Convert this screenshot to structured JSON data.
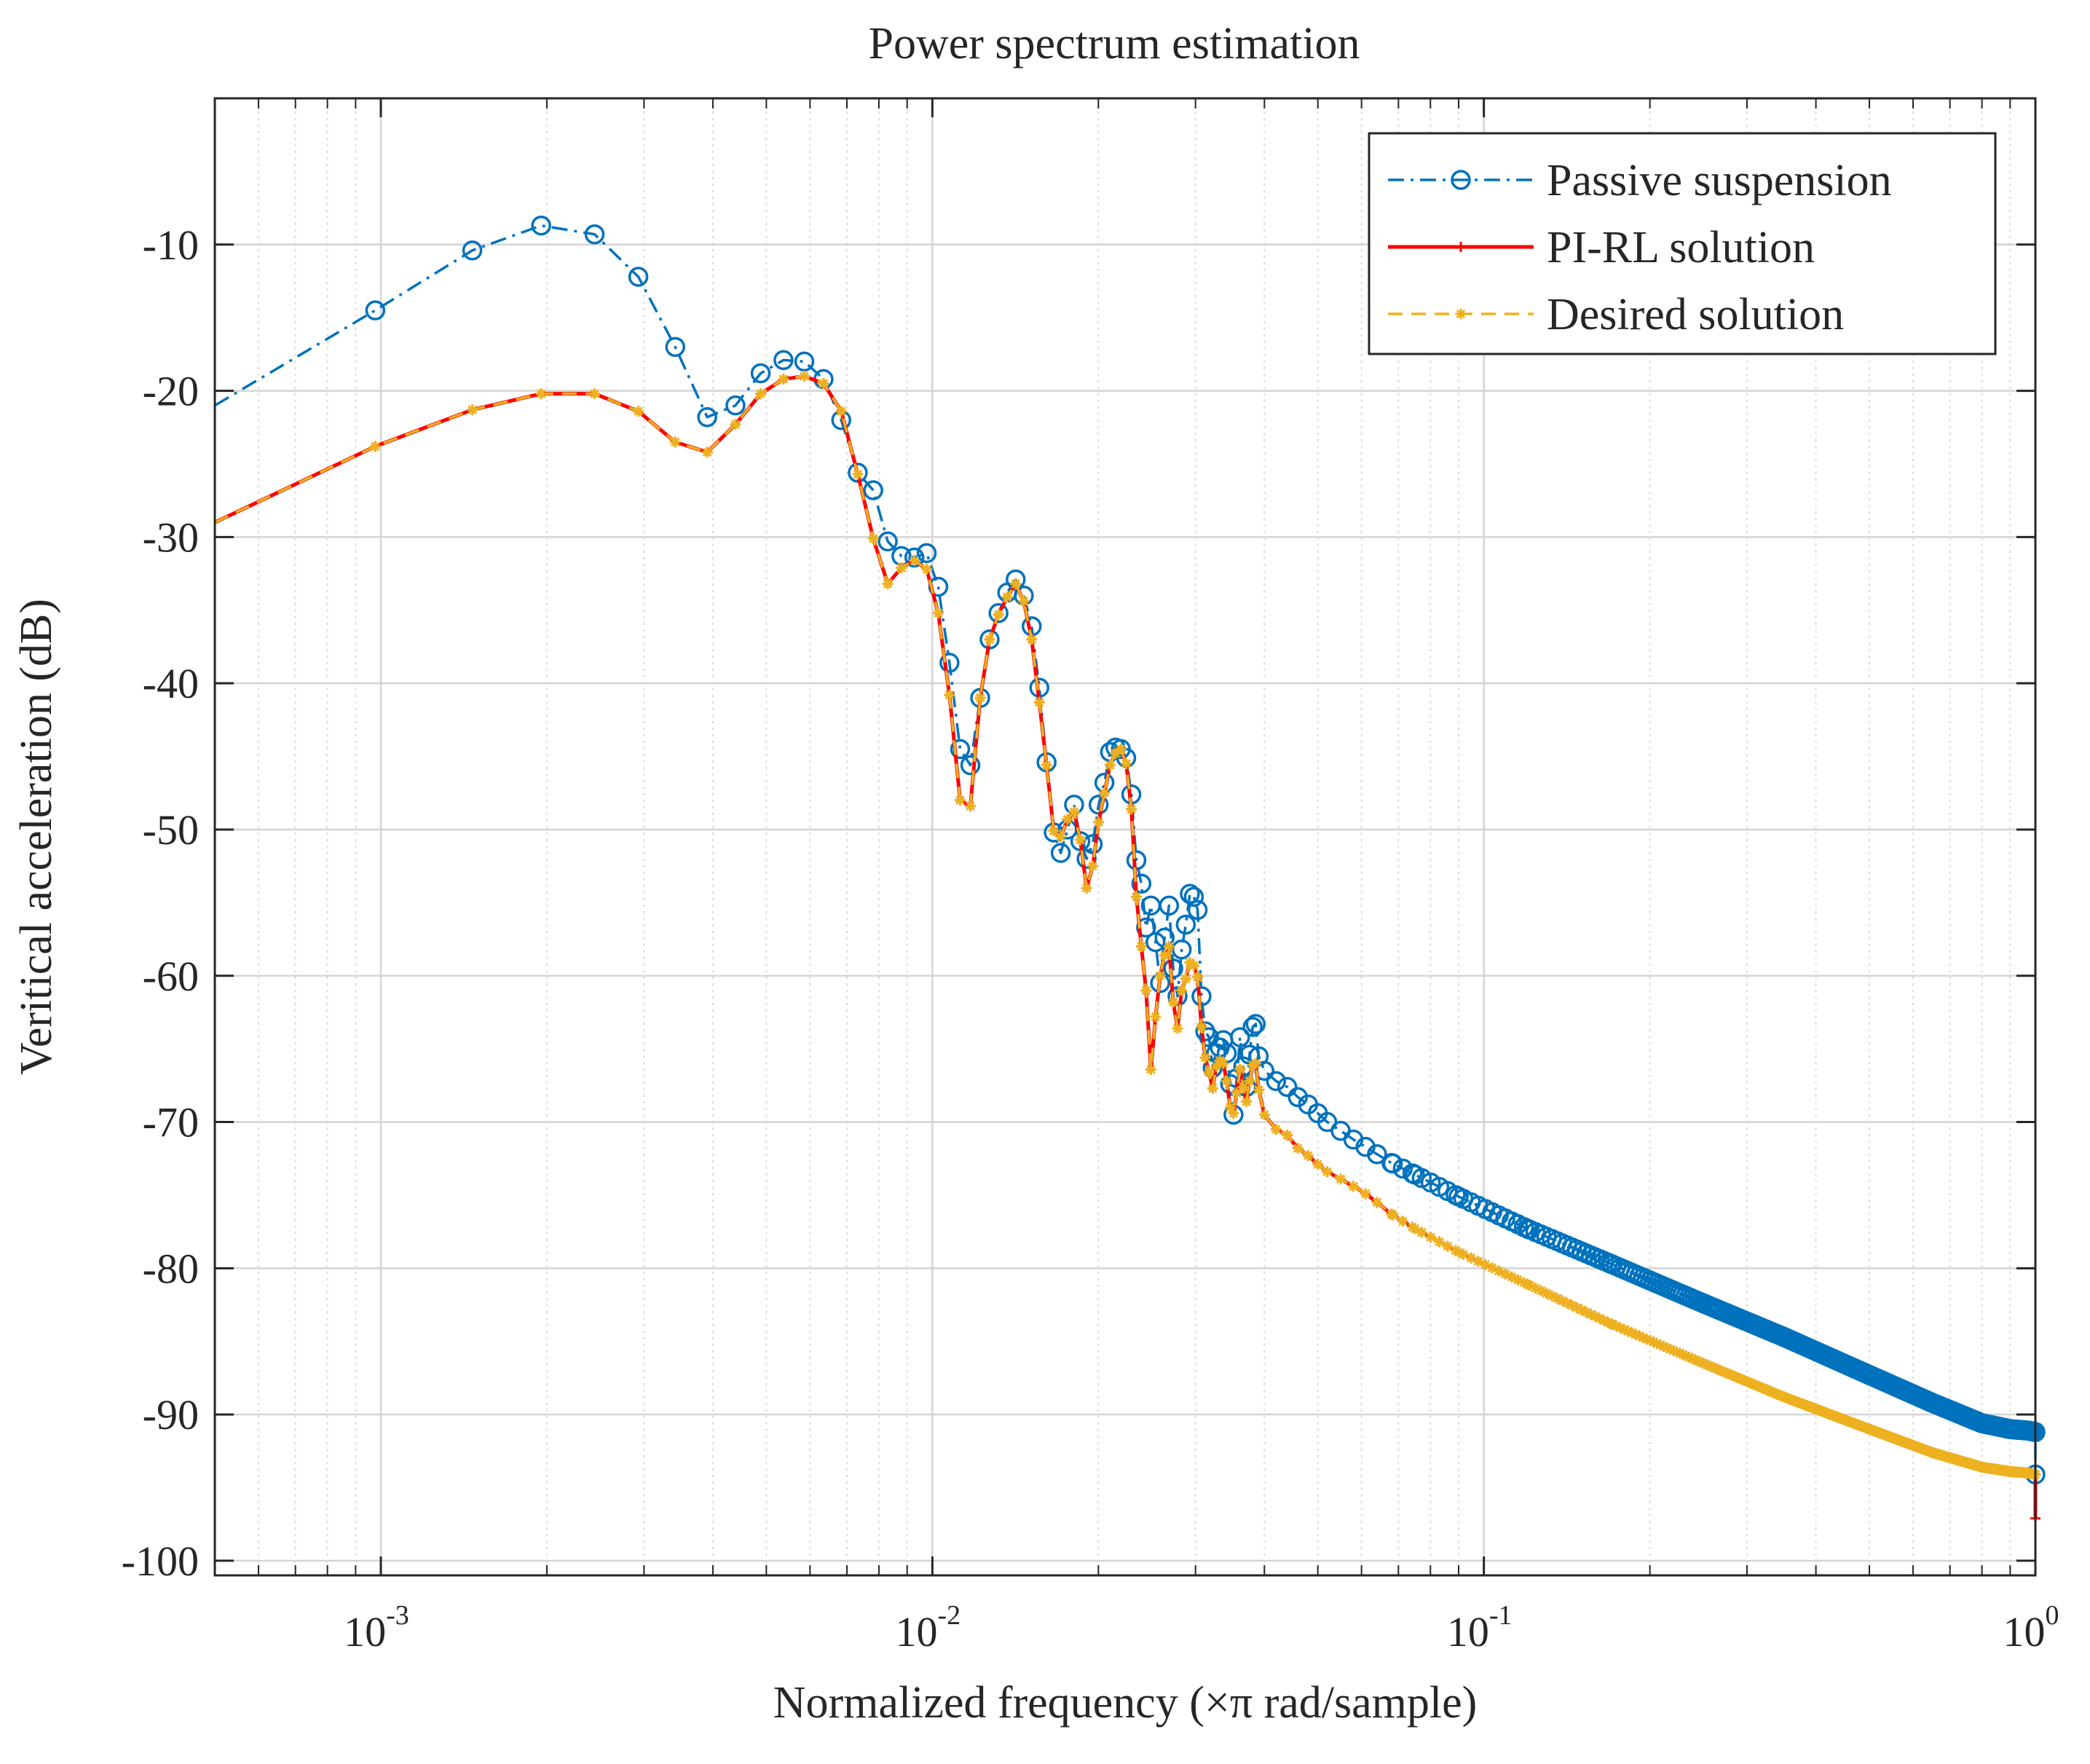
{
  "chart_data": {
    "type": "line",
    "title": "Power spectrum estimation",
    "xlabel": "Normalized frequency  (×π rad/sample)",
    "ylabel": "Veritical acceleration (dB)",
    "xscale": "log",
    "xlim": [
      0.0005,
      1
    ],
    "ylim": [
      -101,
      0
    ],
    "grid": true,
    "legend_position": "top-right",
    "x_ticks": [
      {
        "value": 0.001,
        "base": "10",
        "exp": "-3"
      },
      {
        "value": 0.01,
        "base": "10",
        "exp": "-2"
      },
      {
        "value": 0.1,
        "base": "10",
        "exp": "-1"
      },
      {
        "value": 1,
        "base": "10",
        "exp": "0"
      }
    ],
    "y_ticks": [
      {
        "value": -10,
        "label": "-10"
      },
      {
        "value": -20,
        "label": "-20"
      },
      {
        "value": -30,
        "label": "-30"
      },
      {
        "value": -40,
        "label": "-40"
      },
      {
        "value": -50,
        "label": "-50"
      },
      {
        "value": -60,
        "label": "-60"
      },
      {
        "value": -70,
        "label": "-70"
      },
      {
        "value": -80,
        "label": "-80"
      },
      {
        "value": -90,
        "label": "-90"
      },
      {
        "value": -100,
        "label": "-100"
      }
    ],
    "series": [
      {
        "name": "Passive suspension",
        "color": "#0072BD",
        "line_style": "dashdot",
        "marker": "circle",
        "x": [
          0.0005,
          0.000977,
          0.001465,
          0.001953,
          0.002441,
          0.00293,
          0.003418,
          0.003906,
          0.004395,
          0.004883,
          0.005371,
          0.005859,
          0.006348,
          0.006836,
          0.007324,
          0.007813,
          0.008301,
          0.008789,
          0.009277,
          0.009766,
          0.01025,
          0.01074,
          0.01123,
          0.01172,
          0.01221,
          0.0127,
          0.01318,
          0.01367,
          0.01416,
          0.01465,
          0.01514,
          0.01563,
          0.01611,
          0.0166,
          0.01709,
          0.01758,
          0.01807,
          0.01855,
          0.01904,
          0.01953,
          0.02002,
          0.02051,
          0.021,
          0.02148,
          0.02197,
          0.02246,
          0.02295,
          0.02344,
          0.02393,
          0.02441,
          0.0249,
          0.02539,
          0.02588,
          0.02637,
          0.02686,
          0.02734,
          0.02783,
          0.02832,
          0.02881,
          0.0293,
          0.02979,
          0.03027,
          0.03076,
          0.03125,
          0.03174,
          0.03223,
          0.03271,
          0.0332,
          0.03369,
          0.03418,
          0.03467,
          0.03516,
          0.03564,
          0.03613,
          0.03662,
          0.03711,
          0.0376,
          0.03809,
          0.03857,
          0.03906,
          0.04,
          0.042,
          0.044,
          0.046,
          0.048,
          0.05,
          0.052,
          0.055,
          0.058,
          0.061,
          0.064,
          0.068,
          0.075,
          0.09,
          0.12,
          0.17,
          0.25,
          0.35,
          0.5,
          0.65,
          0.8,
          0.9,
          0.97,
          1.0,
          1.0
        ],
        "y": [
          -21.0,
          -14.5,
          -10.4,
          -8.7,
          -9.3,
          -12.2,
          -17.0,
          -21.8,
          -21.0,
          -18.8,
          -17.9,
          -18.0,
          -19.2,
          -22.0,
          -25.6,
          -26.8,
          -30.3,
          -31.3,
          -31.4,
          -31.1,
          -33.4,
          -38.6,
          -44.5,
          -45.6,
          -41.0,
          -37.0,
          -35.2,
          -33.8,
          -32.9,
          -34.0,
          -36.1,
          -40.3,
          -45.4,
          -50.2,
          -51.6,
          -50.0,
          -48.3,
          -50.8,
          -52.0,
          -51.0,
          -48.3,
          -46.8,
          -44.7,
          -44.4,
          -44.5,
          -45.1,
          -47.6,
          -52.1,
          -53.7,
          -56.7,
          -55.2,
          -57.7,
          -60.5,
          -57.4,
          -55.2,
          -59.5,
          -61.4,
          -58.2,
          -56.5,
          -54.4,
          -54.6,
          -55.5,
          -61.4,
          -63.8,
          -64.2,
          -66.3,
          -65.3,
          -64.9,
          -64.4,
          -65.3,
          -67.4,
          -69.5,
          -67.0,
          -64.2,
          -66.2,
          -67.6,
          -65.4,
          -63.5,
          -63.3,
          -65.5,
          -66.5,
          -67.2,
          -67.6,
          -68.3,
          -68.8,
          -69.4,
          -70.0,
          -70.6,
          -71.2,
          -71.7,
          -72.2,
          -72.8,
          -73.6,
          -75.1,
          -77.3,
          -79.7,
          -82.4,
          -84.7,
          -87.3,
          -89.2,
          -90.6,
          -91.0,
          -91.1,
          -91.2,
          -94.1
        ]
      },
      {
        "name": "PI-RL solution",
        "color": "#FF0000",
        "line_style": "solid",
        "marker": "plus",
        "x": [
          0.0005,
          0.000977,
          0.001465,
          0.001953,
          0.002441,
          0.00293,
          0.003418,
          0.003906,
          0.004395,
          0.004883,
          0.005371,
          0.005859,
          0.006348,
          0.006836,
          0.007324,
          0.007813,
          0.008301,
          0.008789,
          0.009277,
          0.009766,
          0.01025,
          0.01074,
          0.01123,
          0.01172,
          0.01221,
          0.0127,
          0.01318,
          0.01367,
          0.01416,
          0.01465,
          0.01514,
          0.01563,
          0.01611,
          0.0166,
          0.01709,
          0.01758,
          0.01807,
          0.01855,
          0.01904,
          0.01953,
          0.02002,
          0.02051,
          0.021,
          0.02148,
          0.02197,
          0.02246,
          0.02295,
          0.02344,
          0.02393,
          0.02441,
          0.0249,
          0.02539,
          0.02588,
          0.02637,
          0.02686,
          0.02734,
          0.02783,
          0.02832,
          0.02881,
          0.0293,
          0.02979,
          0.03027,
          0.03076,
          0.03125,
          0.03174,
          0.03223,
          0.03271,
          0.0332,
          0.03369,
          0.03418,
          0.03467,
          0.03516,
          0.03564,
          0.03613,
          0.03662,
          0.03711,
          0.0376,
          0.03809,
          0.03857,
          0.03906,
          0.04,
          0.042,
          0.044,
          0.046,
          0.048,
          0.05,
          0.052,
          0.055,
          0.058,
          0.061,
          0.064,
          0.068,
          0.075,
          0.09,
          0.12,
          0.17,
          0.25,
          0.35,
          0.5,
          0.65,
          0.8,
          0.9,
          0.97,
          1.0,
          1.0
        ],
        "y": [
          -29.0,
          -23.8,
          -21.3,
          -20.2,
          -20.2,
          -21.4,
          -23.5,
          -24.2,
          -22.3,
          -20.2,
          -19.2,
          -19.0,
          -19.5,
          -21.4,
          -25.7,
          -30.1,
          -33.2,
          -32.1,
          -31.6,
          -32.2,
          -35.2,
          -40.8,
          -48.0,
          -48.4,
          -41.0,
          -37.0,
          -35.3,
          -34.1,
          -33.2,
          -34.4,
          -37.0,
          -41.3,
          -45.6,
          -50.1,
          -50.5,
          -49.3,
          -48.8,
          -50.7,
          -54.0,
          -52.5,
          -49.5,
          -47.5,
          -45.6,
          -44.8,
          -44.5,
          -45.5,
          -48.6,
          -54.6,
          -58.0,
          -61.0,
          -66.4,
          -62.8,
          -60.0,
          -58.6,
          -58.0,
          -61.8,
          -63.6,
          -61.0,
          -60.2,
          -59.1,
          -59.3,
          -60.1,
          -63.5,
          -65.6,
          -66.6,
          -67.7,
          -66.2,
          -65.8,
          -66.0,
          -67.2,
          -69.0,
          -69.4,
          -68.0,
          -66.4,
          -67.6,
          -68.6,
          -67.2,
          -66.1,
          -66.0,
          -67.8,
          -69.5,
          -70.5,
          -70.9,
          -71.8,
          -72.3,
          -72.9,
          -73.4,
          -73.9,
          -74.4,
          -74.9,
          -75.5,
          -76.3,
          -77.3,
          -78.9,
          -81.1,
          -83.8,
          -86.5,
          -88.8,
          -91.0,
          -92.6,
          -93.6,
          -93.9,
          -94.0,
          -94.1,
          -97.1
        ]
      },
      {
        "name": "Desired solution",
        "color": "#EDB120",
        "line_style": "dashed",
        "marker": "asterisk",
        "x": [
          0.0005,
          0.000977,
          0.001465,
          0.001953,
          0.002441,
          0.00293,
          0.003418,
          0.003906,
          0.004395,
          0.004883,
          0.005371,
          0.005859,
          0.006348,
          0.006836,
          0.007324,
          0.007813,
          0.008301,
          0.008789,
          0.009277,
          0.009766,
          0.01025,
          0.01074,
          0.01123,
          0.01172,
          0.01221,
          0.0127,
          0.01318,
          0.01367,
          0.01416,
          0.01465,
          0.01514,
          0.01563,
          0.01611,
          0.0166,
          0.01709,
          0.01758,
          0.01807,
          0.01855,
          0.01904,
          0.01953,
          0.02002,
          0.02051,
          0.021,
          0.02148,
          0.02197,
          0.02246,
          0.02295,
          0.02344,
          0.02393,
          0.02441,
          0.0249,
          0.02539,
          0.02588,
          0.02637,
          0.02686,
          0.02734,
          0.02783,
          0.02832,
          0.02881,
          0.0293,
          0.02979,
          0.03027,
          0.03076,
          0.03125,
          0.03174,
          0.03223,
          0.03271,
          0.0332,
          0.03369,
          0.03418,
          0.03467,
          0.03516,
          0.03564,
          0.03613,
          0.03662,
          0.03711,
          0.0376,
          0.03809,
          0.03857,
          0.03906,
          0.04,
          0.042,
          0.044,
          0.046,
          0.048,
          0.05,
          0.052,
          0.055,
          0.058,
          0.061,
          0.064,
          0.068,
          0.075,
          0.09,
          0.12,
          0.17,
          0.25,
          0.35,
          0.5,
          0.65,
          0.8,
          0.9,
          0.97,
          1.0,
          1.0
        ],
        "y": [
          -29.0,
          -23.8,
          -21.3,
          -20.2,
          -20.2,
          -21.4,
          -23.5,
          -24.2,
          -22.3,
          -20.2,
          -19.2,
          -19.0,
          -19.5,
          -21.4,
          -25.7,
          -30.1,
          -33.2,
          -32.1,
          -31.6,
          -32.2,
          -35.2,
          -40.8,
          -48.0,
          -48.4,
          -41.0,
          -37.0,
          -35.3,
          -34.1,
          -33.2,
          -34.4,
          -37.0,
          -41.3,
          -45.6,
          -50.1,
          -50.5,
          -49.3,
          -48.8,
          -50.7,
          -54.0,
          -52.5,
          -49.5,
          -47.5,
          -45.6,
          -44.8,
          -44.5,
          -45.5,
          -48.6,
          -54.6,
          -58.0,
          -61.0,
          -66.4,
          -62.8,
          -60.0,
          -58.6,
          -58.0,
          -61.8,
          -63.6,
          -61.0,
          -60.2,
          -59.1,
          -59.3,
          -60.1,
          -63.5,
          -65.6,
          -66.6,
          -67.7,
          -66.2,
          -65.8,
          -66.0,
          -67.2,
          -69.0,
          -69.4,
          -68.0,
          -66.4,
          -67.6,
          -68.6,
          -67.2,
          -66.1,
          -66.0,
          -67.8,
          -69.5,
          -70.5,
          -70.9,
          -71.8,
          -72.3,
          -72.9,
          -73.4,
          -73.9,
          -74.4,
          -74.9,
          -75.5,
          -76.3,
          -77.3,
          -78.9,
          -81.1,
          -83.8,
          -86.5,
          -88.8,
          -91.0,
          -92.6,
          -93.6,
          -93.9,
          -94.0,
          -94.1,
          -94.1
        ]
      }
    ]
  }
}
